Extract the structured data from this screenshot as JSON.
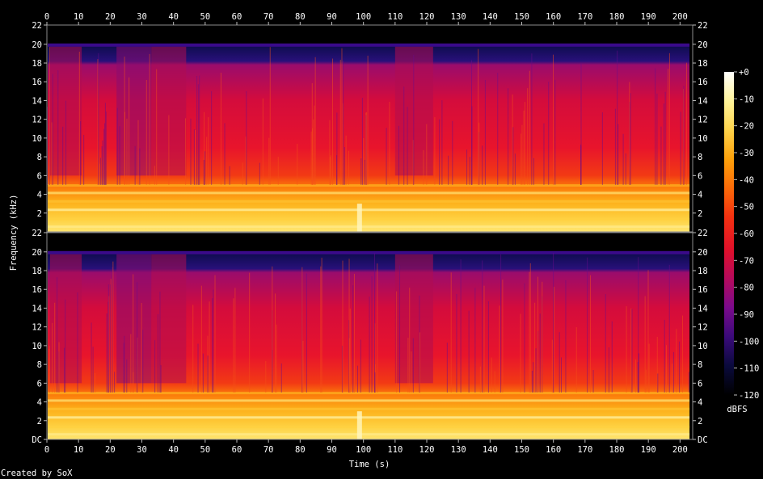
{
  "chart_data": {
    "type": "heatmap",
    "title": "",
    "xlabel": "Time (s)",
    "ylabel": "Frequency (kHz)",
    "x_ticks": [
      0,
      10,
      20,
      30,
      40,
      50,
      60,
      70,
      80,
      90,
      100,
      110,
      120,
      130,
      140,
      150,
      160,
      170,
      180,
      190,
      200
    ],
    "xlim": [
      0,
      204
    ],
    "y_ticks_top": [
      "22",
      "20",
      "18",
      "16",
      "14",
      "12",
      "10",
      "8",
      "6",
      "4",
      "2"
    ],
    "y_ticks_bottom": [
      "22",
      "20",
      "18",
      "16",
      "14",
      "12",
      "10",
      "8",
      "6",
      "4",
      "2",
      "DC"
    ],
    "ylim_khz": [
      0,
      22.05
    ],
    "channels": 2,
    "content_cutoff_khz": 20,
    "duration_s": 203,
    "colorbar": {
      "label": "dBFS",
      "ticks": [
        "+0",
        "-10",
        "-20",
        "-30",
        "-40",
        "-50",
        "-60",
        "-70",
        "-80",
        "-90",
        "-100",
        "-110",
        "-120"
      ],
      "range_db": [
        -120,
        0
      ],
      "colors": [
        "#000000",
        "#0a0a3c",
        "#3a0a7a",
        "#7a0a8c",
        "#b40a5c",
        "#e0102a",
        "#f43010",
        "#fb6a08",
        "#fda10a",
        "#fed34a",
        "#fff49a",
        "#ffffff"
      ]
    },
    "credit": "Created by SoX"
  }
}
